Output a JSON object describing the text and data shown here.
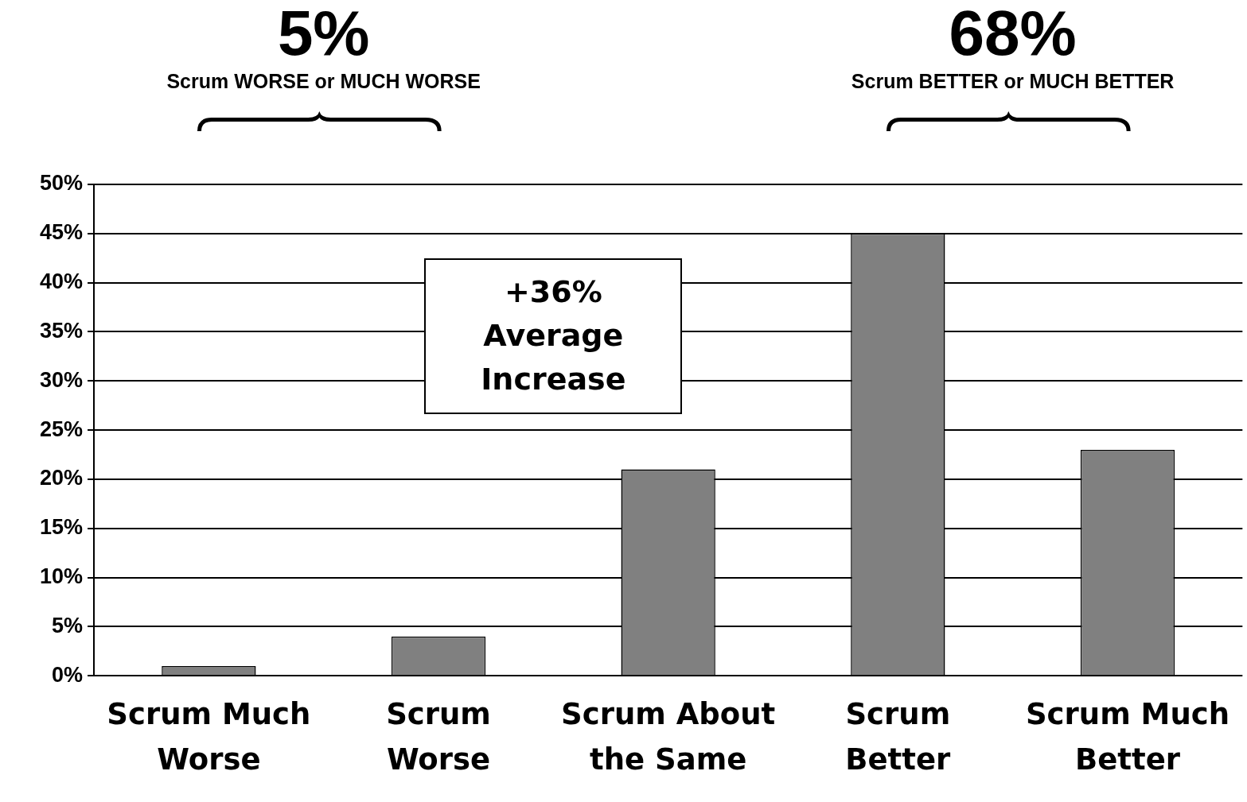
{
  "chart_data": {
    "type": "bar",
    "categories": [
      "Scrum Much Worse",
      "Scrum Worse",
      "Scrum About the Same",
      "Scrum Better",
      "Scrum Much Better"
    ],
    "values": [
      1,
      4,
      21,
      45,
      23
    ],
    "color": "#808080",
    "ylim": [
      0,
      50
    ],
    "yticks": [
      {
        "value": 0,
        "label": "0%"
      },
      {
        "value": 5,
        "label": "5%"
      },
      {
        "value": 10,
        "label": "10%"
      },
      {
        "value": 15,
        "label": "15%"
      },
      {
        "value": 20,
        "label": "20%"
      },
      {
        "value": 25,
        "label": "25%"
      },
      {
        "value": 30,
        "label": "30%"
      },
      {
        "value": 35,
        "label": "35%"
      },
      {
        "value": 40,
        "label": "40%"
      },
      {
        "value": 45,
        "label": "45%"
      },
      {
        "value": 50,
        "label": "50%"
      }
    ],
    "grid": "y",
    "legend": false,
    "annotations": [
      "5%",
      "Scrum WORSE or MUCH WORSE",
      "68%",
      "Scrum BETTER or MUCH BETTER",
      "+36% Average Increase"
    ]
  }
}
